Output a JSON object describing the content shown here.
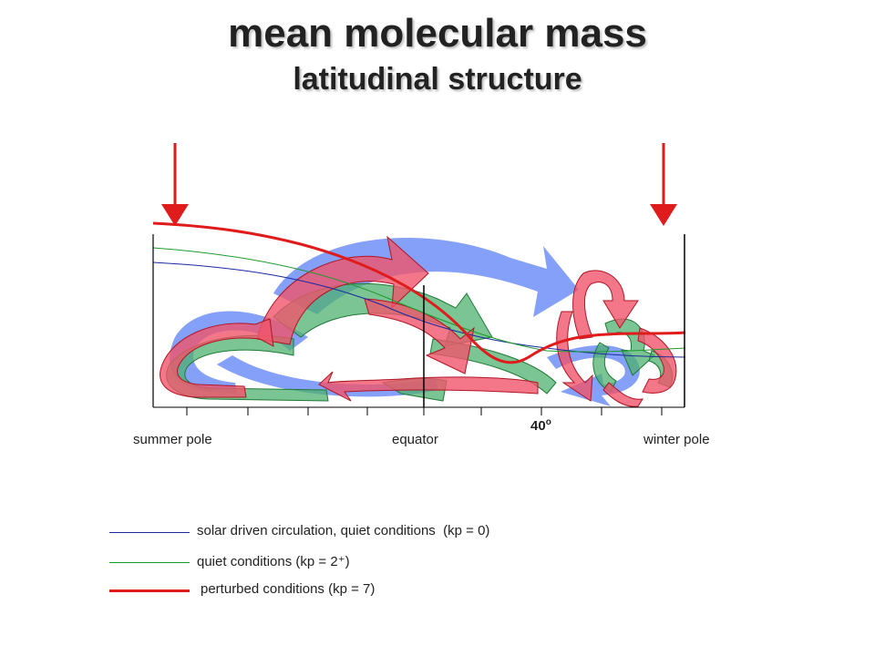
{
  "title": "mean molecular mass",
  "subtitle": "latitudinal structure",
  "axis": {
    "left_label": "summer pole",
    "middle_label": "equator",
    "right_label": "winter pole",
    "latitude_label": "40",
    "latitude_unit": "o"
  },
  "legend": [
    {
      "text": "solar driven circulation, quiet conditions",
      "kp": "(kp = 0)",
      "color": "#1a2aa0"
    },
    {
      "text": "quiet conditions",
      "kp": "(kp = 2⁺)",
      "color": "#1f9a2c"
    },
    {
      "text": "perturbed conditions",
      "kp": "(kp = 7)",
      "color": "#e01b1b"
    }
  ],
  "colors": {
    "blue_arrow": "#6f8ff7",
    "green_arrow": "#4fb070",
    "red_arrow": "#f0556a",
    "red_line": "#e01b1b",
    "green_line": "#1f9a2c",
    "blue_line": "#1a2aa0",
    "frame": "#000000"
  }
}
